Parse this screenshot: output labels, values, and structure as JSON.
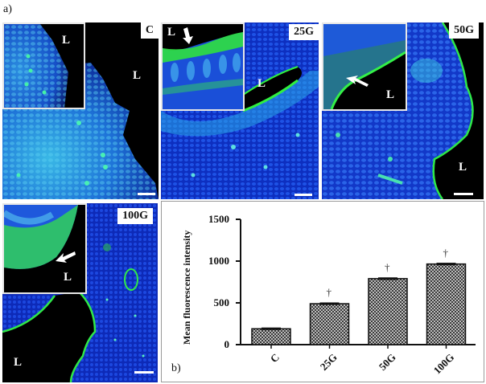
{
  "figure": {
    "panel_a_label": "a)",
    "panel_b_label": "b)"
  },
  "micrographs": [
    {
      "id": "C",
      "tag": "C",
      "inset_lumen": "L",
      "main_lumen": "L",
      "arrow": false
    },
    {
      "id": "25G",
      "tag": "25G",
      "inset_lumen": "L",
      "main_lumen": "L",
      "arrow": true
    },
    {
      "id": "50G",
      "tag": "50G",
      "inset_lumen": "L",
      "main_lumen": "L",
      "arrow": true
    },
    {
      "id": "100G",
      "tag": "100G",
      "inset_lumen": "L",
      "main_lumen": "L",
      "arrow": true
    }
  ],
  "colors": {
    "nuclei_blue": "#1a3fd6",
    "cyan": "#2fb8e0",
    "fitc_green": "#2ee84a",
    "lumen_black": "#000000",
    "bar_fill": "#8c8c8c",
    "axis": "#111111"
  },
  "chart_data": {
    "type": "bar",
    "title": "",
    "xlabel": "",
    "ylabel": "Mean fluorescence intensity",
    "categories": [
      "C",
      "25G",
      "50G",
      "100G"
    ],
    "values": [
      190,
      490,
      790,
      965
    ],
    "errors": [
      15,
      15,
      15,
      15
    ],
    "significance": [
      "",
      "†",
      "†",
      "†"
    ],
    "yticks": [
      0,
      500,
      1000,
      1500
    ],
    "ylim": [
      0,
      1500
    ],
    "grid": false,
    "legend": null,
    "bar_pattern": "checkered-gray"
  }
}
